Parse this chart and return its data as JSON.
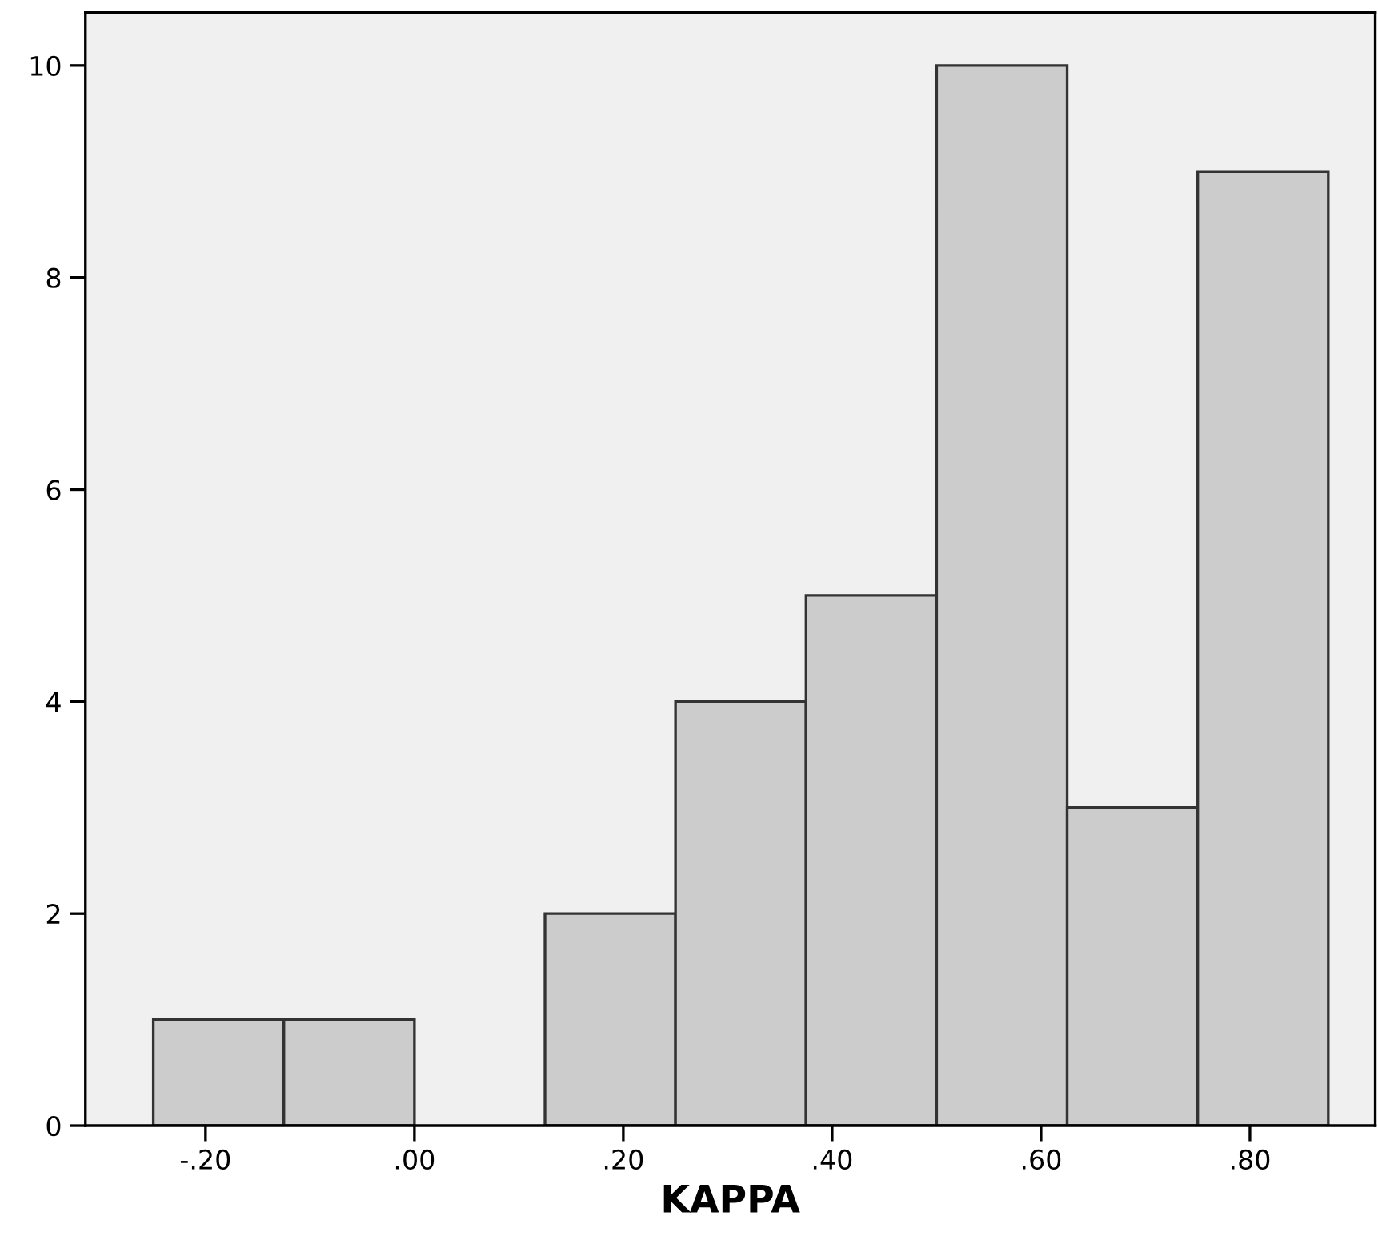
{
  "chart_data": {
    "type": "histogram",
    "xlabel": "KAPPA",
    "bins": [
      -0.25,
      -0.125,
      0,
      0.125,
      0.25,
      0.375,
      0.5,
      0.625,
      0.75,
      0.875
    ],
    "values": [
      1,
      1,
      0,
      2,
      4,
      5,
      10,
      3,
      9
    ],
    "color": "#cccccc",
    "xlim": [
      -0.315,
      0.92
    ],
    "ylim": [
      0,
      10.5
    ],
    "xticks": [
      {
        "value": -0.2,
        "label": "-.20"
      },
      {
        "value": 0,
        "label": ".00"
      },
      {
        "value": 0.2,
        "label": ".20"
      },
      {
        "value": 0.4,
        "label": ".40"
      },
      {
        "value": 0.6,
        "label": ".60"
      },
      {
        "value": 0.8,
        "label": ".80"
      }
    ],
    "yticks": [
      0,
      2,
      4,
      6,
      8,
      10
    ],
    "grid": false
  }
}
